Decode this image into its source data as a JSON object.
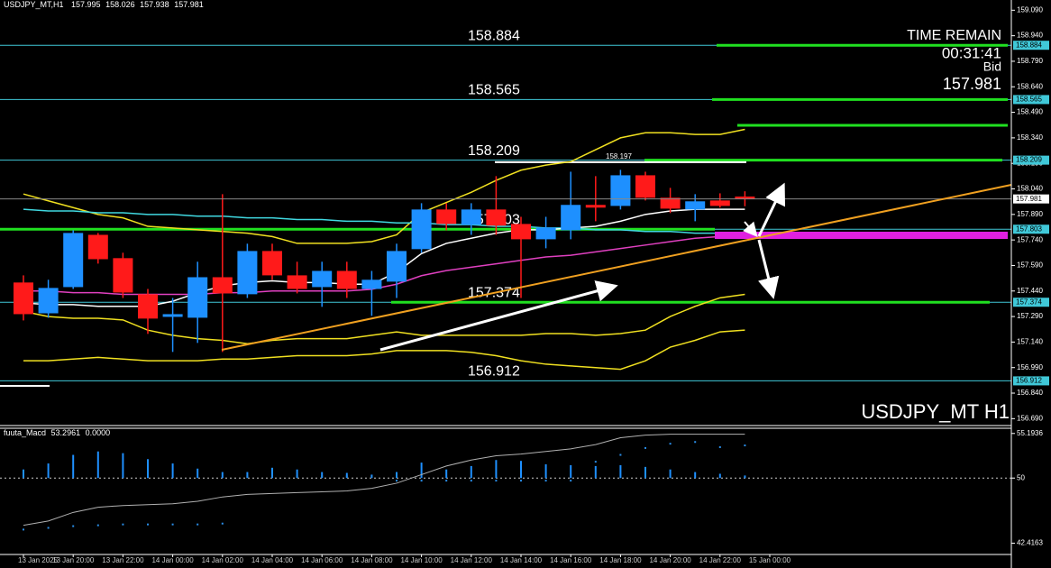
{
  "chart_data": [
    {
      "type": "candlestick",
      "symbol": "USDJPY_MT,H1",
      "watermark": "USDJPY_MT H1",
      "time_remain_label": "TIME REMAIN",
      "time_remain": "00:31:41",
      "bid_label": "Bid",
      "bid": 157.981,
      "categories": [
        "13 Jan 2025",
        null,
        "13 Jan 20:00",
        null,
        "13 Jan 22:00",
        null,
        "14 Jan 00:00",
        null,
        "14 Jan 02:00",
        null,
        "14 Jan 04:00",
        null,
        "14 Jan 06:00",
        null,
        "14 Jan 08:00",
        null,
        "14 Jan 10:00",
        null,
        "14 Jan 12:00",
        null,
        "14 Jan 14:00",
        null,
        "14 Jan 16:00",
        null,
        "14 Jan 18:00",
        null,
        "14 Jan 20:00",
        null,
        "14 Jan 22:00",
        null,
        "15 Jan 00:00"
      ],
      "open": [
        157.49,
        157.309,
        157.463,
        157.77,
        157.633,
        157.421,
        157.288,
        157.283,
        157.521,
        157.421,
        157.675,
        157.532,
        157.463,
        157.558,
        157.452,
        157.495,
        157.686,
        157.919,
        157.829,
        157.919,
        157.834,
        157.744,
        157.797,
        157.946,
        157.94,
        158.12,
        157.988,
        157.919,
        157.972,
        157.995,
        null
      ],
      "high": [
        157.532,
        157.506,
        157.797,
        157.781,
        157.665,
        157.452,
        157.399,
        157.612,
        158.009,
        157.718,
        157.718,
        157.612,
        157.612,
        157.612,
        157.558,
        157.718,
        157.956,
        157.956,
        157.956,
        158.115,
        157.876,
        157.876,
        158.141,
        158.115,
        158.152,
        158.141,
        158.046,
        158.009,
        158.014,
        158.026,
        null
      ],
      "low": [
        157.267,
        157.283,
        157.452,
        157.601,
        157.399,
        157.188,
        157.082,
        157.135,
        157.082,
        157.399,
        157.506,
        157.426,
        157.347,
        157.399,
        157.294,
        157.399,
        157.665,
        157.797,
        157.77,
        157.77,
        157.399,
        157.691,
        157.744,
        157.85,
        157.919,
        157.972,
        157.898,
        157.85,
        157.93,
        157.938,
        null
      ],
      "close": [
        157.304,
        157.458,
        157.781,
        157.627,
        157.431,
        157.278,
        157.304,
        157.521,
        157.426,
        157.675,
        157.532,
        157.452,
        157.558,
        157.452,
        157.506,
        157.675,
        157.919,
        157.834,
        157.919,
        157.824,
        157.744,
        157.813,
        157.946,
        157.93,
        158.12,
        157.988,
        157.924,
        157.967,
        157.94,
        157.981,
        null
      ],
      "up_color": "#1e90ff",
      "down_color": "#ff1a1a",
      "lines": [
        {
          "color": "#f0e020",
          "values": [
            158.01,
            157.97,
            157.93,
            157.89,
            157.87,
            157.82,
            157.81,
            157.8,
            157.79,
            157.78,
            157.76,
            157.72,
            157.72,
            157.72,
            157.73,
            157.77,
            157.9,
            157.96,
            158.02,
            158.09,
            158.15,
            158.18,
            158.2,
            158.27,
            158.34,
            158.37,
            158.37,
            158.36,
            158.36,
            158.39,
            null
          ]
        },
        {
          "color": "#f0e020",
          "values": [
            157.32,
            157.29,
            157.28,
            157.28,
            157.27,
            157.21,
            157.18,
            157.16,
            157.15,
            157.13,
            157.15,
            157.16,
            157.16,
            157.16,
            157.18,
            157.2,
            157.18,
            157.18,
            157.18,
            157.18,
            157.18,
            157.19,
            157.19,
            157.18,
            157.19,
            157.21,
            157.29,
            157.35,
            157.4,
            157.42,
            null
          ]
        },
        {
          "color": "#f0e020",
          "values": [
            157.03,
            157.03,
            157.04,
            157.05,
            157.04,
            157.03,
            157.03,
            157.03,
            157.04,
            157.04,
            157.05,
            157.06,
            157.06,
            157.06,
            157.07,
            157.09,
            157.09,
            157.09,
            157.08,
            157.06,
            157.03,
            157.01,
            157.0,
            156.99,
            156.98,
            157.03,
            157.11,
            157.15,
            157.2,
            157.21,
            null
          ]
        },
        {
          "color": "#40d8e0",
          "values": [
            157.92,
            157.91,
            157.91,
            157.9,
            157.9,
            157.89,
            157.89,
            157.88,
            157.88,
            157.87,
            157.87,
            157.86,
            157.86,
            157.85,
            157.85,
            157.84,
            157.84,
            157.83,
            157.83,
            157.82,
            157.82,
            157.81,
            157.81,
            157.8,
            157.8,
            157.79,
            157.79,
            157.78,
            157.78,
            157.78,
            null
          ]
        },
        {
          "color": "#e040c0",
          "values": [
            157.44,
            157.44,
            157.43,
            157.43,
            157.42,
            157.42,
            157.42,
            157.42,
            157.43,
            157.43,
            157.44,
            157.44,
            157.44,
            157.44,
            157.45,
            157.48,
            157.53,
            157.56,
            157.58,
            157.6,
            157.62,
            157.64,
            157.65,
            157.67,
            157.69,
            157.71,
            157.73,
            157.75,
            157.76,
            157.76,
            null
          ]
        },
        {
          "color": "#ffffff",
          "values": [
            157.37,
            157.36,
            157.36,
            157.35,
            157.35,
            157.35,
            157.38,
            157.43,
            157.47,
            157.49,
            157.5,
            157.49,
            157.49,
            157.48,
            157.48,
            157.55,
            157.66,
            157.72,
            157.75,
            157.78,
            157.8,
            157.8,
            157.81,
            157.82,
            157.85,
            157.89,
            157.91,
            157.92,
            157.92,
            157.92,
            null
          ]
        }
      ],
      "levels": [
        158.884,
        158.565,
        158.209,
        157.803,
        157.374,
        156.912
      ],
      "level_color": "#40c8d8",
      "high_mark": 158.197,
      "ylim": [
        156.66,
        159.15
      ],
      "yticks": [
        {
          "value": 159.09,
          "label": "159.090"
        },
        {
          "value": 158.94,
          "label": "158.940"
        },
        {
          "value": 158.79,
          "label": "158.790"
        },
        {
          "value": 158.64,
          "label": "158.640"
        },
        {
          "value": 158.49,
          "label": "158.490"
        },
        {
          "value": 158.34,
          "label": "158.340"
        },
        {
          "value": 158.19,
          "label": "158.190"
        },
        {
          "value": 158.04,
          "label": "158.040"
        },
        {
          "value": 157.89,
          "label": "157.890"
        },
        {
          "value": 157.74,
          "label": "157.740"
        },
        {
          "value": 157.59,
          "label": "157.590"
        },
        {
          "value": 157.44,
          "label": "157.440"
        },
        {
          "value": 157.29,
          "label": "157.290"
        },
        {
          "value": 157.14,
          "label": "157.140"
        },
        {
          "value": 156.99,
          "label": "156.990"
        },
        {
          "value": 156.84,
          "label": "156.840"
        },
        {
          "value": 156.69,
          "label": "156.690"
        }
      ]
    },
    {
      "type": "macd",
      "title": "fuuta_Macd",
      "title_values": [
        53.2961,
        {
          "value": 0,
          "label": "0.0000"
        }
      ],
      "baseline": 50,
      "histogram": [
        51.0,
        51.7,
        52.7,
        53.1,
        52.9,
        52.2,
        51.7,
        51.1,
        50.7,
        50.7,
        51.2,
        51.0,
        50.7,
        50.6,
        50.4,
        50.7,
        51.8,
        51.0,
        51.4,
        52.1,
        52.0,
        51.6,
        51.5,
        51.4,
        51.5,
        51.3,
        51.0,
        50.7,
        50.5,
        50.3,
        null
      ],
      "hist_color": "#1e90ff",
      "signal": [
        44.5,
        45.0,
        46.0,
        46.6,
        46.8,
        46.9,
        47.0,
        47.3,
        47.8,
        48.1,
        48.2,
        48.3,
        48.4,
        48.5,
        48.8,
        49.4,
        50.4,
        51.4,
        52.1,
        52.6,
        52.8,
        53.1,
        53.4,
        53.9,
        54.7,
        55.0,
        55.1,
        55.1,
        55.1,
        55.1,
        null
      ],
      "signal_color": "#b0b0b0",
      "dots": [
        44.0,
        44.2,
        44.4,
        44.5,
        44.6,
        44.6,
        44.6,
        44.6,
        44.7,
        50.2,
        50.2,
        50.2,
        50.2,
        50.2,
        50.2,
        49.7,
        49.7,
        49.7,
        49.7,
        49.7,
        49.7,
        49.7,
        49.7,
        51.9,
        52.7,
        53.5,
        54.0,
        54.2,
        53.6,
        53.8,
        null
      ],
      "dot_color": "#2a8ee8",
      "ylim": [
        41.1,
        55.8
      ],
      "yticks": [
        55.1936,
        50,
        42.4163
      ]
    }
  ]
}
